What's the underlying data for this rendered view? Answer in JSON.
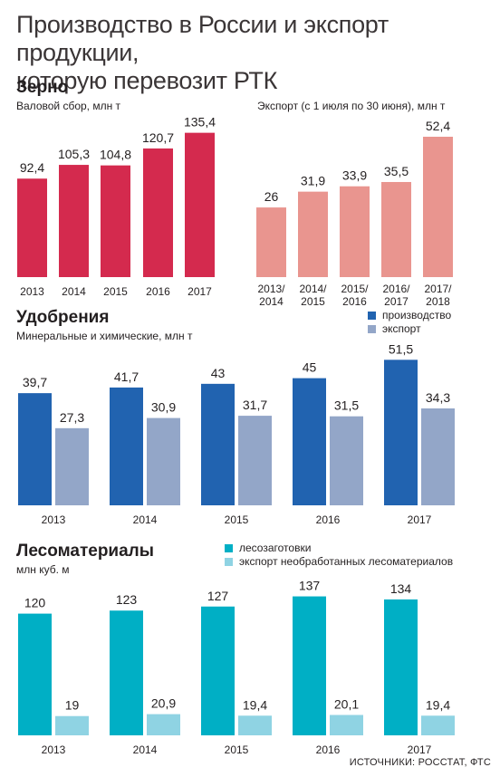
{
  "title": {
    "line1": "Производство в России и экспорт продукции,",
    "line2": "которую перевозит РТК"
  },
  "sections": {
    "grain": {
      "title": "Зерно"
    },
    "fertilizers": {
      "title": "Удобрения",
      "subtitle": "Минеральные и химические, млн т",
      "legend": [
        "производство",
        "экспорт"
      ]
    },
    "timber": {
      "title": "Лесоматериалы",
      "subtitle": "млн куб. м",
      "legend": [
        "лесозаготовки",
        "экспорт необработанных лесоматериалов"
      ]
    }
  },
  "colors": {
    "grain_harvest": "#d42a4e",
    "grain_export": "#e9958f",
    "fert_production": "#2163b0",
    "fert_export": "#93a6c8",
    "timber_logging": "#00afc5",
    "timber_export": "#8fd3e3"
  },
  "source": "ИСТОЧНИКИ: РОССТАТ, ФТС",
  "chart_data": [
    {
      "type": "bar",
      "title": "Зерно",
      "subtitle": "Валовой сбор, млн т",
      "categories": [
        "2013",
        "2014",
        "2015",
        "2016",
        "2017"
      ],
      "values": [
        92.4,
        105.3,
        104.8,
        120.7,
        135.4
      ],
      "labels": [
        "92,4",
        "105,3",
        "104,8",
        "120,7",
        "135,4"
      ]
    },
    {
      "type": "bar",
      "title": "Экспорт (с 1 июля по 30 июня), млн т",
      "categories": [
        "2013/2014",
        "2014/2015",
        "2015/2016",
        "2016/2017",
        "2017/2018"
      ],
      "category_lines": [
        [
          "2013/",
          "2014"
        ],
        [
          "2014/",
          "2015"
        ],
        [
          "2015/",
          "2016"
        ],
        [
          "2016/",
          "2017"
        ],
        [
          "2017/",
          "2018"
        ]
      ],
      "values": [
        26,
        31.9,
        33.9,
        35.5,
        52.4
      ],
      "labels": [
        "26",
        "31,9",
        "33,9",
        "35,5",
        "52,4"
      ]
    },
    {
      "type": "bar",
      "title": "Удобрения",
      "subtitle": "Минеральные и химические, млн т",
      "categories": [
        "2013",
        "2014",
        "2015",
        "2016",
        "2017"
      ],
      "series": [
        {
          "name": "производство",
          "values": [
            39.7,
            41.7,
            43,
            45,
            51.5
          ],
          "labels": [
            "39,7",
            "41,7",
            "43",
            "45",
            "51,5"
          ]
        },
        {
          "name": "экспорт",
          "values": [
            27.3,
            30.9,
            31.7,
            31.5,
            34.3
          ],
          "labels": [
            "27,3",
            "30,9",
            "31,7",
            "31,5",
            "34,3"
          ]
        }
      ]
    },
    {
      "type": "bar",
      "title": "Лесоматериалы",
      "subtitle": "млн куб. м",
      "categories": [
        "2013",
        "2014",
        "2015",
        "2016",
        "2017"
      ],
      "series": [
        {
          "name": "лесозаготовки",
          "values": [
            120,
            123,
            127,
            137,
            134
          ],
          "labels": [
            "120",
            "123",
            "127",
            "137",
            "134"
          ]
        },
        {
          "name": "экспорт необработанных лесоматериалов",
          "values": [
            19,
            20.9,
            19.4,
            20.1,
            19.4
          ],
          "labels": [
            "19",
            "20,9",
            "19,4",
            "20,1",
            "19,4"
          ]
        }
      ]
    }
  ]
}
